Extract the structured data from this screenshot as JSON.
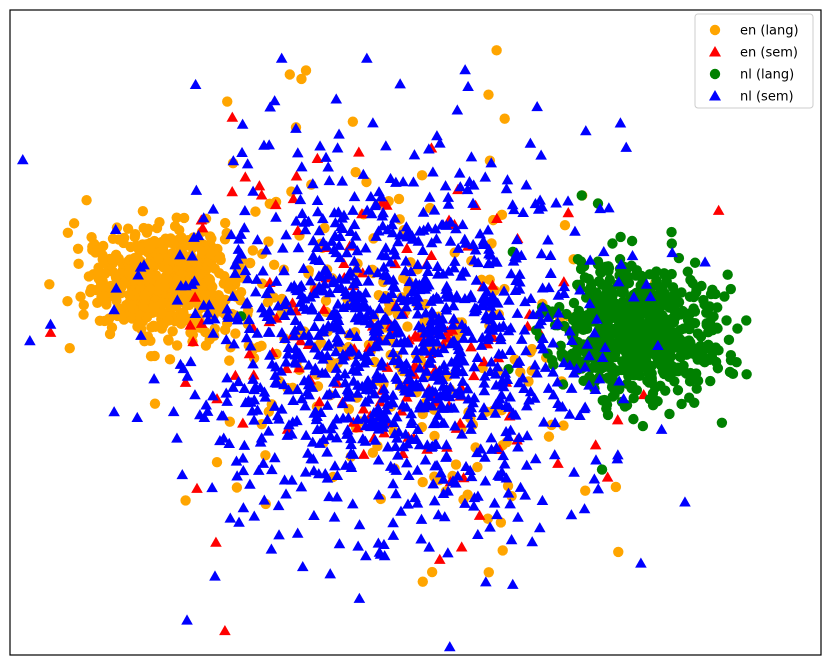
{
  "chart_data": {
    "type": "scatter",
    "title": "",
    "xlabel": "",
    "ylabel": "",
    "xlim": [
      -100,
      100
    ],
    "ylim": [
      -80,
      80
    ],
    "grid": false,
    "axes_ticks": false,
    "legend_placement": "top-right",
    "series": [
      {
        "name": "en (lang)",
        "marker": "circle",
        "color": "#FFA500",
        "clusters": [
          {
            "center": [
              -62,
              12
            ],
            "spread": [
              13,
              9
            ],
            "count": 620
          },
          {
            "center": [
              -5,
              -3
            ],
            "spread": [
              34,
              30
            ],
            "count": 220
          }
        ],
        "points": [
          [
            -27,
            65
          ],
          [
            -31,
            64
          ],
          [
            20,
            70
          ],
          [
            18,
            59
          ],
          [
            -45,
            42
          ]
        ]
      },
      {
        "name": "en (sem)",
        "marker": "triangle",
        "color": "#FF0000",
        "clusters": [
          {
            "center": [
              -5,
              -3
            ],
            "spread": [
              34,
              30
            ],
            "count": 150
          }
        ],
        "points": [
          [
            -47,
            -74
          ],
          [
            -90,
            0
          ]
        ]
      },
      {
        "name": "nl (lang)",
        "marker": "circle",
        "color": "#008000",
        "clusters": [
          {
            "center": [
              55,
              0
            ],
            "spread": [
              13,
              11
            ],
            "count": 700
          }
        ],
        "points": [
          [
            41,
            34
          ],
          [
            45,
            32
          ],
          [
            24,
            20
          ],
          [
            -43,
            4
          ],
          [
            46,
            -34
          ]
        ]
      },
      {
        "name": "nl (sem)",
        "marker": "triangle",
        "color": "#0000FF",
        "clusters": [
          {
            "center": [
              -5,
              -3
            ],
            "spread": [
              34,
              30
            ],
            "count": 1150
          }
        ],
        "points": [
          [
            -90,
            2
          ],
          [
            -33,
            68
          ],
          [
            30,
            56
          ],
          [
            42,
            50
          ],
          [
            -12,
            68
          ]
        ]
      }
    ]
  }
}
